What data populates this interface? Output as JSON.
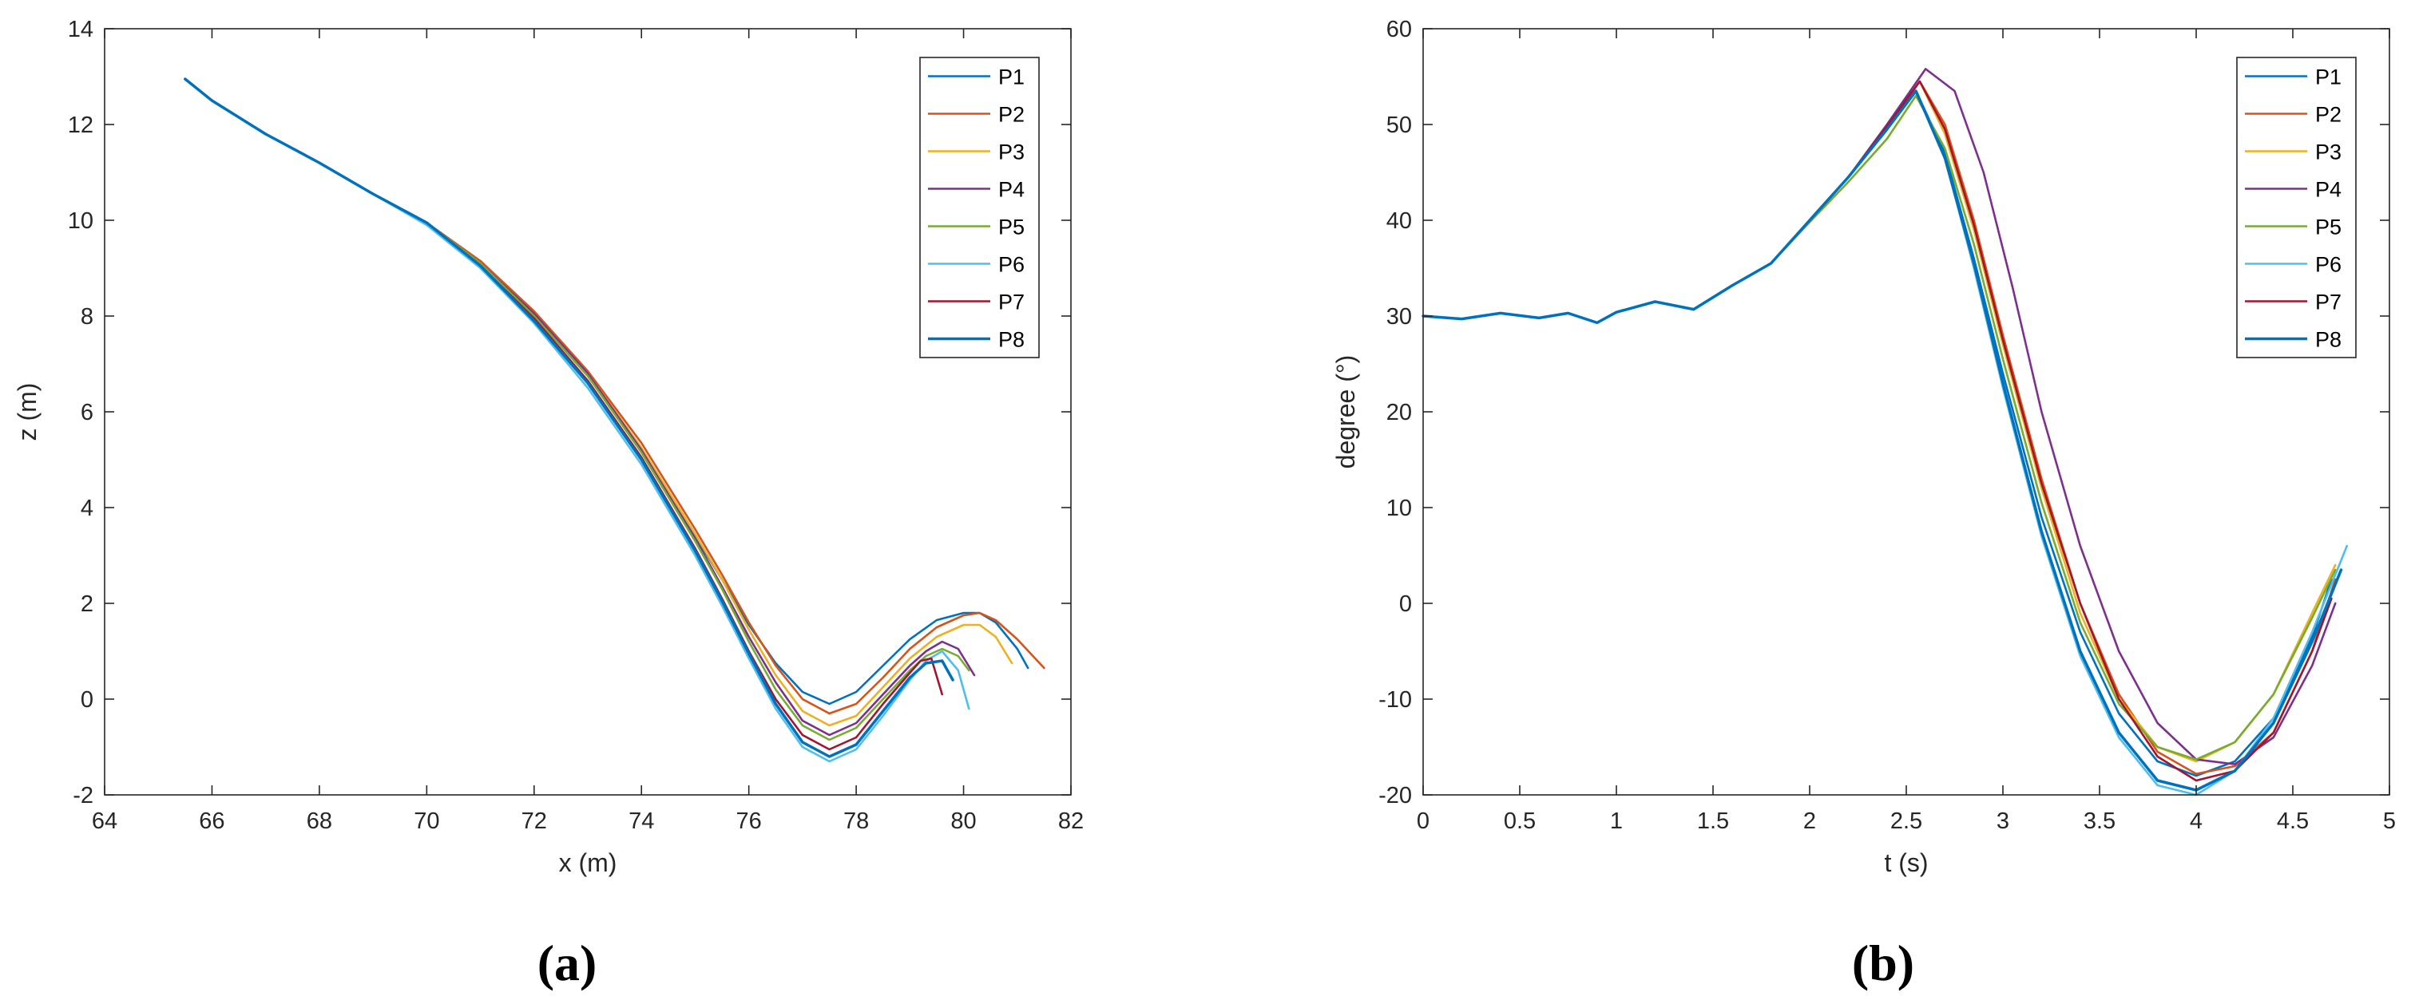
{
  "colors": {
    "P1": "#0072BD",
    "P2": "#D95319",
    "P3": "#EDB120",
    "P4": "#7E2F8E",
    "P5": "#77AC30",
    "P6": "#4DBEEE",
    "P7": "#A2142F",
    "P8": "#0072BD",
    "axis": "#262626",
    "background": "#ffffff"
  },
  "chart_data": [
    {
      "type": "line",
      "panel_label": "(a)",
      "xlabel": "x (m)",
      "ylabel": "z (m)",
      "xlim": [
        64,
        82
      ],
      "ylim": [
        -2,
        14
      ],
      "xticks": [
        64,
        66,
        68,
        70,
        72,
        74,
        76,
        78,
        80,
        82
      ],
      "yticks": [
        -2,
        0,
        2,
        4,
        6,
        8,
        10,
        12,
        14
      ],
      "legend_position": "top-right",
      "series": [
        {
          "name": "P1",
          "x": [
            65.5,
            66,
            67,
            68,
            69,
            70,
            71,
            72,
            73,
            74,
            75,
            75.5,
            76,
            76.5,
            77,
            77.5,
            78,
            78.5,
            79,
            79.5,
            80,
            80.3,
            80.6,
            81,
            81.2
          ],
          "y": [
            12.95,
            12.5,
            11.8,
            11.2,
            10.55,
            9.95,
            9.1,
            8.0,
            6.75,
            5.2,
            3.4,
            2.5,
            1.55,
            0.75,
            0.15,
            -0.1,
            0.15,
            0.7,
            1.25,
            1.65,
            1.8,
            1.8,
            1.6,
            1.05,
            0.65
          ]
        },
        {
          "name": "P2",
          "x": [
            65.5,
            66,
            67,
            68,
            69,
            70,
            71,
            72,
            73,
            74,
            75,
            75.5,
            76,
            76.5,
            77,
            77.5,
            78,
            78.5,
            79,
            79.5,
            80,
            80.3,
            80.6,
            81,
            81.5
          ],
          "y": [
            12.95,
            12.5,
            11.8,
            11.2,
            10.55,
            9.95,
            9.15,
            8.1,
            6.85,
            5.35,
            3.55,
            2.6,
            1.6,
            0.7,
            0.0,
            -0.3,
            -0.1,
            0.45,
            1.05,
            1.5,
            1.75,
            1.8,
            1.65,
            1.25,
            0.65
          ]
        },
        {
          "name": "P3",
          "x": [
            65.5,
            66,
            67,
            68,
            69,
            70,
            71,
            72,
            73,
            74,
            75,
            75.5,
            76,
            76.5,
            77,
            77.5,
            78,
            78.5,
            79,
            79.5,
            80,
            80.3,
            80.6,
            80.9
          ],
          "y": [
            12.95,
            12.5,
            11.8,
            11.2,
            10.55,
            9.95,
            9.1,
            8.05,
            6.8,
            5.25,
            3.45,
            2.5,
            1.45,
            0.5,
            -0.25,
            -0.55,
            -0.35,
            0.25,
            0.85,
            1.3,
            1.55,
            1.55,
            1.3,
            0.75
          ]
        },
        {
          "name": "P4",
          "x": [
            65.5,
            66,
            67,
            68,
            69,
            70,
            71,
            72,
            73,
            74,
            75,
            75.5,
            76,
            76.5,
            77,
            77.5,
            78,
            78.5,
            79,
            79.3,
            79.6,
            79.9,
            80.2
          ],
          "y": [
            12.95,
            12.5,
            11.8,
            11.2,
            10.55,
            9.95,
            9.1,
            8.05,
            6.8,
            5.2,
            3.35,
            2.35,
            1.3,
            0.35,
            -0.45,
            -0.75,
            -0.5,
            0.1,
            0.7,
            1.0,
            1.2,
            1.05,
            0.5
          ]
        },
        {
          "name": "P5",
          "x": [
            65.5,
            66,
            67,
            68,
            69,
            70,
            71,
            72,
            73,
            74,
            75,
            75.5,
            76,
            76.5,
            77,
            77.5,
            78,
            78.5,
            79,
            79.3,
            79.6,
            79.9,
            80.1
          ],
          "y": [
            12.95,
            12.5,
            11.8,
            11.2,
            10.55,
            9.95,
            9.1,
            8.0,
            6.75,
            5.15,
            3.3,
            2.3,
            1.2,
            0.2,
            -0.55,
            -0.85,
            -0.6,
            0.0,
            0.6,
            0.9,
            1.05,
            0.9,
            0.6
          ]
        },
        {
          "name": "P6",
          "x": [
            65.5,
            66,
            67,
            68,
            69,
            70,
            71,
            72,
            73,
            74,
            75,
            75.5,
            76,
            76.5,
            77,
            77.5,
            78,
            78.5,
            79,
            79.3,
            79.6,
            79.9,
            80.1
          ],
          "y": [
            12.95,
            12.5,
            11.8,
            11.2,
            10.55,
            9.9,
            9.0,
            7.85,
            6.5,
            4.9,
            3.0,
            1.95,
            0.85,
            -0.2,
            -1.0,
            -1.3,
            -1.05,
            -0.35,
            0.4,
            0.8,
            1.0,
            0.6,
            -0.2
          ]
        },
        {
          "name": "P7",
          "x": [
            65.5,
            66,
            67,
            68,
            69,
            70,
            71,
            72,
            73,
            74,
            75,
            75.5,
            76,
            76.5,
            77,
            77.5,
            78,
            78.5,
            79,
            79.2,
            79.4,
            79.6
          ],
          "y": [
            12.95,
            12.5,
            11.8,
            11.2,
            10.55,
            9.95,
            9.05,
            7.95,
            6.65,
            5.05,
            3.15,
            2.1,
            1.0,
            0.0,
            -0.75,
            -1.05,
            -0.8,
            -0.1,
            0.55,
            0.8,
            0.85,
            0.1
          ]
        },
        {
          "name": "P8",
          "x": [
            65.5,
            66,
            67,
            68,
            69,
            70,
            71,
            72,
            73,
            74,
            75,
            75.5,
            76,
            76.5,
            77,
            77.5,
            78,
            78.5,
            79,
            79.3,
            79.6,
            79.8
          ],
          "y": [
            12.95,
            12.5,
            11.8,
            11.2,
            10.55,
            9.95,
            9.05,
            7.9,
            6.6,
            5.0,
            3.1,
            2.05,
            0.95,
            -0.1,
            -0.9,
            -1.2,
            -0.95,
            -0.25,
            0.45,
            0.75,
            0.8,
            0.4
          ]
        }
      ]
    },
    {
      "type": "line",
      "panel_label": "(b)",
      "xlabel": "t (s)",
      "ylabel": "degree (°)",
      "xlim": [
        0,
        5
      ],
      "ylim": [
        -20,
        60
      ],
      "xticks": [
        0,
        0.5,
        1,
        1.5,
        2,
        2.5,
        3,
        3.5,
        4,
        4.5,
        5
      ],
      "yticks": [
        -20,
        -10,
        0,
        10,
        20,
        30,
        40,
        50,
        60
      ],
      "legend_position": "top-right",
      "series": [
        {
          "name": "P1",
          "x": [
            0,
            0.2,
            0.4,
            0.6,
            0.75,
            0.9,
            1.0,
            1.2,
            1.4,
            1.6,
            1.8,
            2.0,
            2.2,
            2.4,
            2.55,
            2.7,
            2.85,
            3.0,
            3.2,
            3.4,
            3.6,
            3.8,
            4.0,
            4.2,
            4.4,
            4.6,
            4.7
          ],
          "y": [
            30,
            29.7,
            30.3,
            29.8,
            30.3,
            29.3,
            30.4,
            31.5,
            30.7,
            33.2,
            35.5,
            40,
            44.5,
            49.5,
            53.5,
            47,
            36,
            24,
            9,
            -3,
            -11.5,
            -16.5,
            -18,
            -16.5,
            -12,
            -3.5,
            2.5
          ]
        },
        {
          "name": "P2",
          "x": [
            0,
            0.2,
            0.4,
            0.6,
            0.75,
            0.9,
            1.0,
            1.2,
            1.4,
            1.6,
            1.8,
            2.0,
            2.2,
            2.4,
            2.57,
            2.7,
            2.85,
            3.0,
            3.2,
            3.4,
            3.6,
            3.8,
            4.0,
            4.2,
            4.4,
            4.6,
            4.72
          ],
          "y": [
            30,
            29.7,
            30.3,
            29.8,
            30.3,
            29.3,
            30.4,
            31.5,
            30.7,
            33.2,
            35.5,
            40,
            44.5,
            49.8,
            54.5,
            50,
            40,
            28,
            13,
            0,
            -9.5,
            -15.5,
            -17.8,
            -17,
            -13.5,
            -5,
            2.5
          ]
        },
        {
          "name": "P3",
          "x": [
            0,
            0.2,
            0.4,
            0.6,
            0.75,
            0.9,
            1.0,
            1.2,
            1.4,
            1.6,
            1.8,
            2.0,
            2.2,
            2.4,
            2.57,
            2.7,
            2.85,
            3.0,
            3.2,
            3.4,
            3.6,
            3.8,
            4.0,
            4.2,
            4.4,
            4.6,
            4.72
          ],
          "y": [
            30,
            29.7,
            30.3,
            29.8,
            30.3,
            29.3,
            30.4,
            31.5,
            30.7,
            33.2,
            35.5,
            40,
            44.5,
            49.8,
            54.5,
            49,
            39,
            27,
            12,
            -1,
            -10,
            -15,
            -16.5,
            -14.5,
            -9.5,
            -1,
            4
          ]
        },
        {
          "name": "P4",
          "x": [
            0,
            0.2,
            0.4,
            0.6,
            0.75,
            0.9,
            1.0,
            1.2,
            1.4,
            1.6,
            1.8,
            2.0,
            2.2,
            2.4,
            2.6,
            2.75,
            2.9,
            3.05,
            3.2,
            3.4,
            3.6,
            3.8,
            4.0,
            4.2,
            4.4,
            4.6,
            4.72
          ],
          "y": [
            30,
            29.7,
            30.3,
            29.8,
            30.3,
            29.3,
            30.4,
            31.5,
            30.7,
            33.2,
            35.5,
            40,
            44.5,
            50,
            55.8,
            53.5,
            45,
            33,
            20,
            6,
            -5,
            -12.5,
            -16.3,
            -16.8,
            -14,
            -6.5,
            0
          ]
        },
        {
          "name": "P5",
          "x": [
            0,
            0.2,
            0.4,
            0.6,
            0.75,
            0.9,
            1.0,
            1.2,
            1.4,
            1.6,
            1.8,
            2.0,
            2.2,
            2.4,
            2.55,
            2.7,
            2.85,
            3.0,
            3.2,
            3.4,
            3.6,
            3.8,
            4.0,
            4.2,
            4.4,
            4.6,
            4.72
          ],
          "y": [
            30,
            29.7,
            30.3,
            29.8,
            30.3,
            29.3,
            30.4,
            31.5,
            30.7,
            33.2,
            35.5,
            39.8,
            44,
            48.5,
            53,
            47.5,
            37.5,
            25.5,
            10.5,
            -2,
            -10.5,
            -15,
            -16.3,
            -14.5,
            -9.5,
            -1.5,
            3.5
          ]
        },
        {
          "name": "P6",
          "x": [
            0,
            0.2,
            0.4,
            0.6,
            0.75,
            0.9,
            1.0,
            1.2,
            1.4,
            1.6,
            1.8,
            2.0,
            2.2,
            2.4,
            2.55,
            2.7,
            2.85,
            3.0,
            3.2,
            3.4,
            3.6,
            3.8,
            4.0,
            4.2,
            4.4,
            4.6,
            4.78
          ],
          "y": [
            30,
            29.7,
            30.3,
            29.8,
            30.3,
            29.3,
            30.4,
            31.5,
            30.7,
            33.2,
            35.5,
            40,
            44.5,
            49.5,
            53.5,
            46.5,
            35,
            22.5,
            7,
            -5.5,
            -14,
            -19,
            -20,
            -17.5,
            -12,
            -3,
            6
          ]
        },
        {
          "name": "P7",
          "x": [
            0,
            0.2,
            0.4,
            0.6,
            0.75,
            0.9,
            1.0,
            1.2,
            1.4,
            1.6,
            1.8,
            2.0,
            2.2,
            2.4,
            2.57,
            2.7,
            2.85,
            3.0,
            3.2,
            3.4,
            3.6,
            3.8,
            4.0,
            4.2,
            4.4,
            4.6,
            4.7
          ],
          "y": [
            30,
            29.7,
            30.3,
            29.8,
            30.3,
            29.3,
            30.4,
            31.5,
            30.7,
            33.2,
            35.5,
            40,
            44.5,
            49.8,
            54.5,
            49.5,
            39.5,
            27.5,
            12.5,
            0,
            -10,
            -16,
            -18.5,
            -17.5,
            -13.5,
            -5,
            0.5
          ]
        },
        {
          "name": "P8",
          "x": [
            0,
            0.2,
            0.4,
            0.6,
            0.75,
            0.9,
            1.0,
            1.2,
            1.4,
            1.6,
            1.8,
            2.0,
            2.2,
            2.4,
            2.55,
            2.7,
            2.85,
            3.0,
            3.2,
            3.4,
            3.6,
            3.8,
            4.0,
            4.2,
            4.4,
            4.6,
            4.75
          ],
          "y": [
            30,
            29.7,
            30.3,
            29.8,
            30.3,
            29.3,
            30.4,
            31.5,
            30.7,
            33.2,
            35.5,
            40,
            44.5,
            49.5,
            53.5,
            46.5,
            35.5,
            23,
            7.5,
            -5,
            -13.5,
            -18.5,
            -19.5,
            -17.5,
            -12.5,
            -4,
            3.5
          ]
        }
      ]
    }
  ]
}
